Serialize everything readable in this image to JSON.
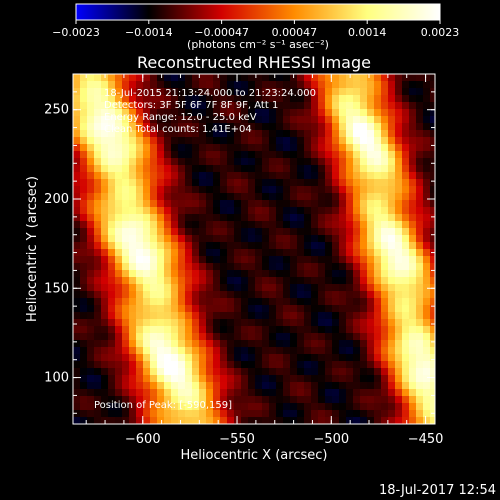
{
  "chart_data": {
    "type": "heatmap",
    "title": "Reconstructed RHESSI Image",
    "xlabel": "Heliocentric X (arcsec)",
    "ylabel": "Heliocentric Y (arcsec)",
    "xlim": [
      -637,
      -445
    ],
    "ylim": [
      74,
      270
    ],
    "x_ticks": [
      -600,
      -550,
      -500,
      -450
    ],
    "y_ticks": [
      100,
      150,
      200,
      250
    ],
    "x_tick_labels": [
      "−600",
      "−550",
      "−500",
      "−450"
    ],
    "y_tick_labels": [
      "100",
      "150",
      "200",
      "250"
    ],
    "colorbar": {
      "min": -0.0023,
      "max": 0.0023,
      "tick_labels": [
        "−0.0023",
        "−0.0014",
        "−0.00047",
        "0.00047",
        "0.0014",
        "0.0023"
      ],
      "unit_label": "(photons cm⁻² s⁻¹ asec⁻²)",
      "colors": [
        "#0000ff",
        "#000000",
        "#d20000",
        "#ff8c00",
        "#ffff80",
        "#ffffff"
      ]
    },
    "annotations": [
      "18-Jul-2015 21:13:24.000 to 21:23:24.000",
      "Detectors: 3F 5F 6F 7F 8F 9F, Att 1",
      "Energy Range: 12.0 - 25.0 keV",
      "Clean    Total counts: 1.41E+04"
    ],
    "position_label": "Position of Peak: [-590,159]",
    "ridges": [
      {
        "name": "bright-band-left",
        "slope": -0.26,
        "x_at_y150": -596,
        "width": 20,
        "level": 0.0023
      },
      {
        "name": "bright-band-right",
        "slope": -0.24,
        "x_at_y150": -462,
        "width": 18,
        "level": 0.0022
      },
      {
        "name": "trough-band",
        "slope": -0.25,
        "x_at_y150": -530,
        "width": 14,
        "level": -0.0012
      }
    ]
  },
  "footer": {
    "timestamp": "18-Jul-2017 12:54"
  }
}
